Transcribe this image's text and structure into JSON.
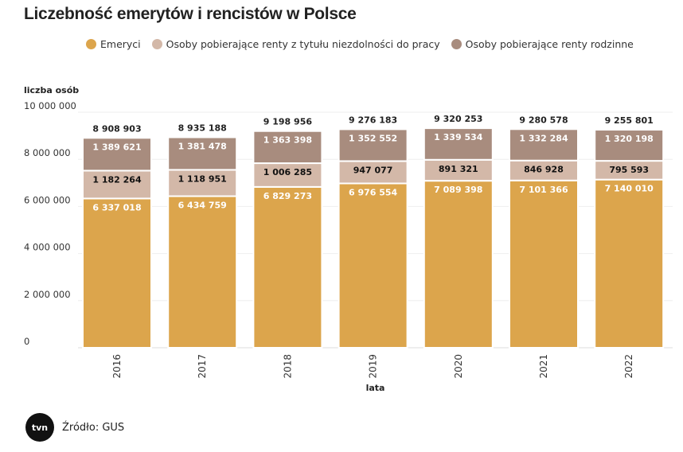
{
  "title": "Liczebność emerytów i rencistów w Polsce",
  "source": "Źródło: GUS",
  "logo_text": "tvn24",
  "chart_data": {
    "type": "bar",
    "stacked": true,
    "title": "Liczebność emerytów i rencistów w Polsce",
    "xlabel": "lata",
    "ylabel": "liczba osób",
    "ylim": [
      0,
      10000000
    ],
    "yticks": [
      0,
      2000000,
      4000000,
      6000000,
      8000000,
      10000000
    ],
    "ytick_labels": [
      "0",
      "2 000 000",
      "4 000 000",
      "6 000 000",
      "8 000 000",
      "10 000 000"
    ],
    "categories": [
      "2016",
      "2017",
      "2018",
      "2019",
      "2020",
      "2021",
      "2022"
    ],
    "legend_position": "top",
    "series": [
      {
        "name": "Emeryci",
        "color": "#dca54c",
        "values": [
          6337018,
          6434759,
          6829273,
          6976554,
          7089398,
          7101366,
          7140010
        ],
        "labels": [
          "6 337 018",
          "6 434 759",
          "6 829 273",
          "6 976 554",
          "7 089 398",
          "7 101 366",
          "7 140 010"
        ]
      },
      {
        "name": "Osoby pobierające renty z tytułu niezdolności do pracy",
        "color": "#d3b8a8",
        "values": [
          1182264,
          1118951,
          1006285,
          947077,
          891321,
          846928,
          795593
        ],
        "labels": [
          "1 182 264",
          "1 118 951",
          "1 006 285",
          "947 077",
          "891 321",
          "846 928",
          "795 593"
        ]
      },
      {
        "name": "Osoby pobierające renty rodzinne",
        "color": "#a88c7e",
        "values": [
          1389621,
          1381478,
          1363398,
          1352552,
          1339534,
          1332284,
          1320198
        ],
        "labels": [
          "1 389 621",
          "1 381 478",
          "1 363 398",
          "1 352 552",
          "1 339 534",
          "1 332 284",
          "1 320 198"
        ]
      }
    ],
    "totals": [
      8908903,
      8935188,
      9198956,
      9276183,
      9320253,
      9280578,
      9255801
    ],
    "total_labels": [
      "8 908 903",
      "8 935 188",
      "9 198 956",
      "9 276 183",
      "9 320 253",
      "9 280 578",
      "9 255 801"
    ]
  }
}
